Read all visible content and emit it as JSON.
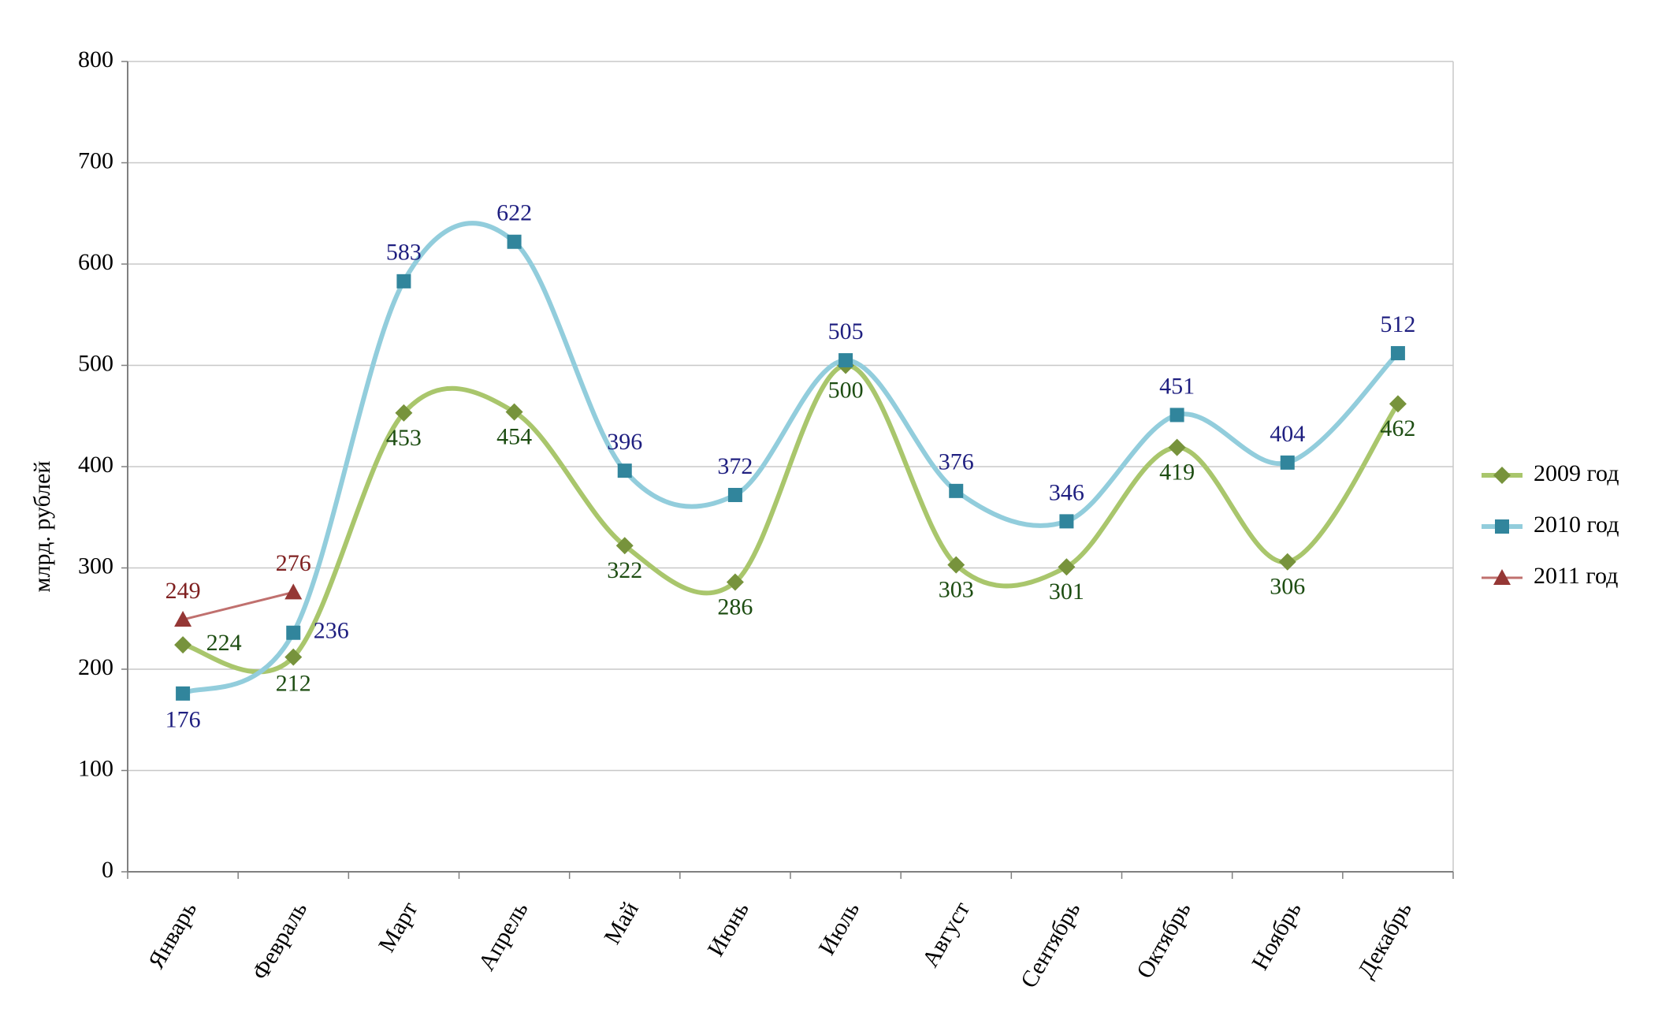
{
  "chart_data": {
    "type": "line",
    "smooth": true,
    "y_label": "млрд. рублей",
    "categories": [
      "Январь",
      "Февраль",
      "Март",
      "Апрель",
      "Май",
      "Июнь",
      "Июль",
      "Август",
      "Сентябрь",
      "Октябрь",
      "Ноябрь",
      "Декабрь"
    ],
    "series": [
      {
        "name": "2009 год",
        "color": "#a9c66c",
        "marker_color": "#77933c",
        "label_color": "#1d4d12",
        "marker": "diamond",
        "values": [
          224,
          212,
          453,
          454,
          322,
          286,
          500,
          303,
          301,
          419,
          306,
          462
        ]
      },
      {
        "name": "2010 год",
        "color": "#92cddc",
        "marker_color": "#31859c",
        "label_color": "#1f1f80",
        "marker": "square",
        "values": [
          176,
          236,
          583,
          622,
          396,
          372,
          505,
          376,
          346,
          451,
          404,
          512
        ]
      },
      {
        "name": "2011 год",
        "color": "#c0706e",
        "marker_color": "#953735",
        "label_color": "#7f2020",
        "marker": "triangle",
        "values": [
          249,
          276,
          null,
          null,
          null,
          null,
          null,
          null,
          null,
          null,
          null,
          null
        ]
      }
    ],
    "ylim": [
      0,
      800
    ],
    "yticks": [
      0,
      100,
      200,
      300,
      400,
      500,
      600,
      700,
      800
    ],
    "grid": true,
    "legend": "right"
  }
}
